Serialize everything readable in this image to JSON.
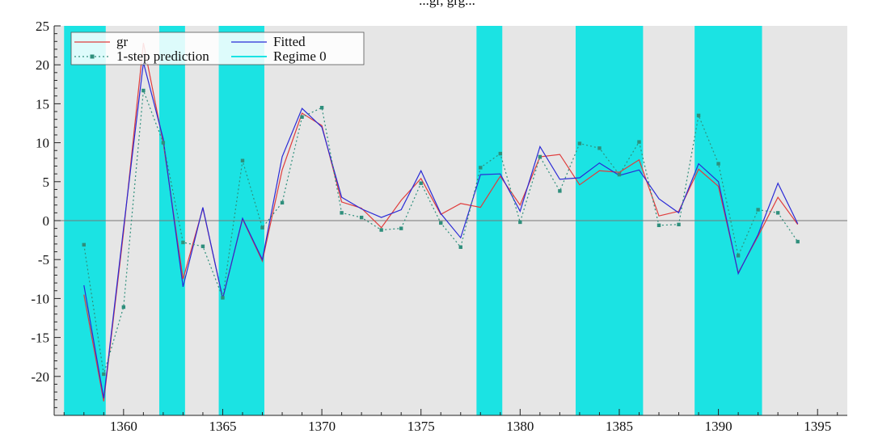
{
  "chart_data": {
    "type": "line",
    "title": "...gr, grg...",
    "xlabel": "",
    "ylabel": "",
    "xlim": [
      1356.5,
      1396.5
    ],
    "ylim": [
      -25,
      25
    ],
    "x_ticks": [
      1360,
      1365,
      1370,
      1375,
      1380,
      1385,
      1390,
      1395
    ],
    "y_ticks": [
      25,
      20,
      15,
      10,
      5,
      0,
      -5,
      -10,
      -15,
      -20
    ],
    "grid": false,
    "legend_position": "top-left",
    "regime_bands": [
      {
        "start": 1357.0,
        "end": 1359.1
      },
      {
        "start": 1361.8,
        "end": 1363.1
      },
      {
        "start": 1364.8,
        "end": 1367.1
      },
      {
        "start": 1377.8,
        "end": 1379.1
      },
      {
        "start": 1382.8,
        "end": 1386.2
      },
      {
        "start": 1388.8,
        "end": 1392.2
      }
    ],
    "x": [
      1358,
      1359,
      1360,
      1361,
      1362,
      1363,
      1364,
      1365,
      1366,
      1367,
      1368,
      1369,
      1370,
      1371,
      1372,
      1373,
      1374,
      1375,
      1376,
      1377,
      1378,
      1379,
      1380,
      1381,
      1382,
      1383,
      1384,
      1385,
      1386,
      1387,
      1388,
      1389,
      1390,
      1391,
      1392,
      1393,
      1394
    ],
    "series": [
      {
        "name": "gr",
        "color": "#e03c3c",
        "style": "solid",
        "values": [
          -9.5,
          -23.2,
          -1.5,
          22.8,
          10.0,
          -7.5,
          1.6,
          -10.0,
          0.2,
          -5.2,
          6.5,
          13.8,
          12.2,
          2.4,
          1.6,
          -0.9,
          2.6,
          5.4,
          0.8,
          2.2,
          1.7,
          5.7,
          2.0,
          8.2,
          8.5,
          4.6,
          6.4,
          6.2,
          7.8,
          0.6,
          1.2,
          6.6,
          4.4,
          -6.7,
          -2.0,
          3.0,
          -0.5
        ]
      },
      {
        "name": "Fitted",
        "color": "#2a2ad6",
        "style": "solid",
        "values": [
          -8.3,
          -22.8,
          -1.0,
          20.3,
          10.5,
          -8.5,
          1.7,
          -10.0,
          0.3,
          -5.0,
          8.2,
          14.4,
          12.0,
          3.0,
          1.5,
          0.4,
          1.4,
          6.4,
          0.9,
          -2.2,
          5.9,
          6.0,
          1.2,
          9.5,
          5.3,
          5.5,
          7.4,
          5.8,
          6.5,
          2.8,
          1.0,
          7.3,
          5.0,
          -6.8,
          -1.8,
          4.8,
          -0.4
        ]
      },
      {
        "name": "1-step prediction",
        "color": "#2f8f7c",
        "style": "dotted",
        "values": [
          -3.1,
          -19.7,
          -11.1,
          16.7,
          10.0,
          -2.8,
          -3.3,
          -9.9,
          7.7,
          -0.9,
          2.3,
          13.3,
          14.5,
          1.0,
          0.4,
          -1.2,
          -1.0,
          4.8,
          -0.3,
          -3.4,
          6.8,
          8.6,
          -0.2,
          8.2,
          3.8,
          9.9,
          9.3,
          5.9,
          10.1,
          -0.6,
          -0.5,
          13.5,
          7.3,
          -4.5,
          1.4,
          1.0,
          -2.7
        ]
      }
    ],
    "legend": [
      {
        "label": "gr",
        "kind": "line",
        "color": "#e03c3c"
      },
      {
        "label": "Fitted",
        "kind": "line",
        "color": "#2a2ad6"
      },
      {
        "label": "1-step prediction",
        "kind": "dotted-marker",
        "color": "#2f8f7c"
      },
      {
        "label": "Regime 0",
        "kind": "band",
        "color": "#1be3e3"
      }
    ]
  },
  "colors": {
    "plot_background": "#e6e6e6",
    "regime_fill": "#1be3e3",
    "zero_line": "#777777",
    "axis": "#222222"
  }
}
